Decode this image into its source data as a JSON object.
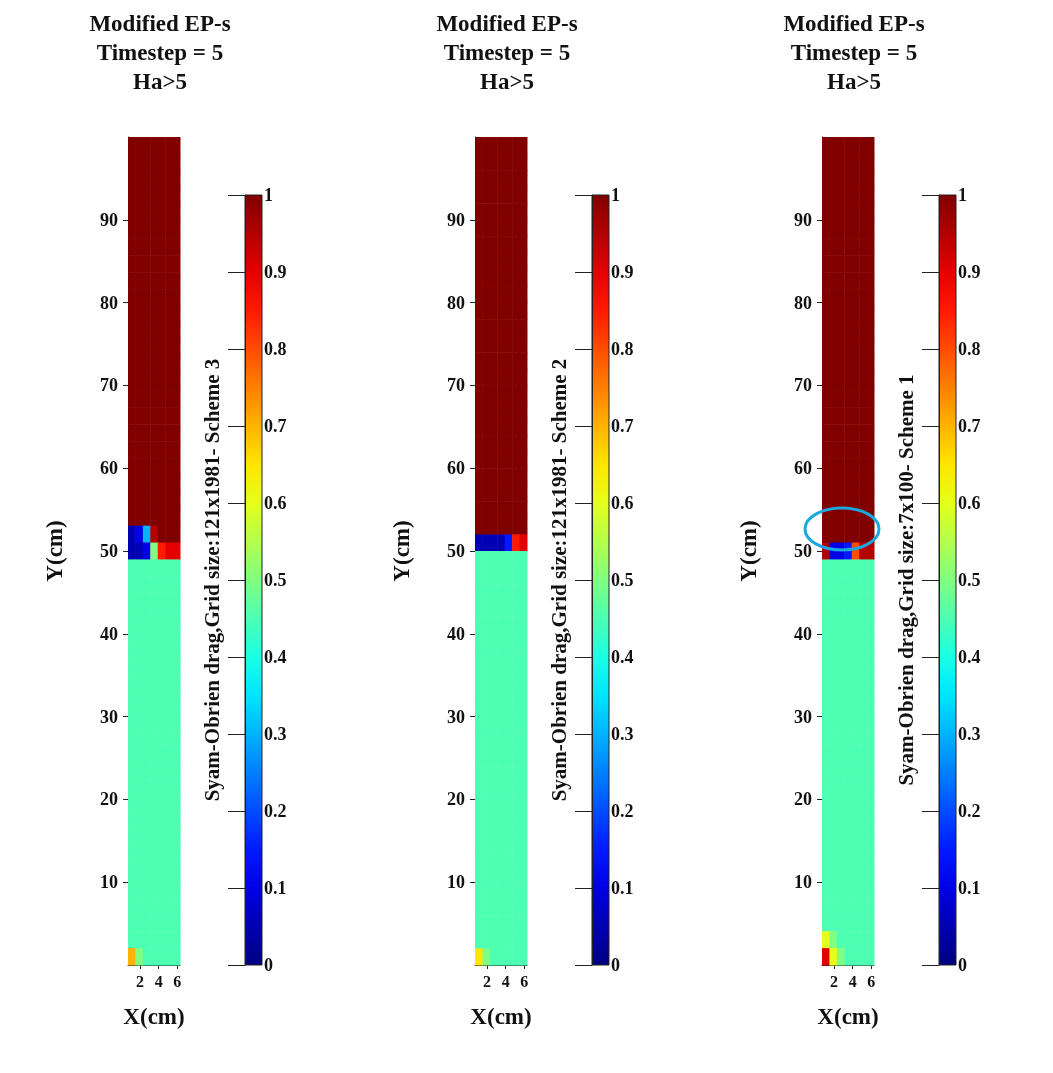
{
  "chart_data": [
    {
      "type": "heatmap",
      "title": "Modified EP-s\nTimestep = 5\nHa>5",
      "xlabel": "X(cm)",
      "ylabel": "Y(cm)",
      "clabel": "Syam-Obrien drag,Grid size:121x1981- Scheme 3",
      "xlim": [
        0.7,
        6.3
      ],
      "ylim": [
        0,
        100
      ],
      "xticks": [
        2,
        4,
        6
      ],
      "yticks": [
        10,
        20,
        30,
        40,
        50,
        60,
        70,
        80,
        90
      ],
      "clim": [
        0,
        1
      ],
      "cticks": [
        0,
        0.1,
        0.2,
        0.3,
        0.4,
        0.5,
        0.6,
        0.7,
        0.8,
        0.9,
        1
      ],
      "cells": [
        [
          1,
          1,
          1,
          1,
          1,
          1,
          1
        ],
        [
          1,
          1,
          1,
          1,
          1,
          1,
          1
        ],
        [
          1,
          1,
          1,
          1,
          1,
          1,
          1
        ],
        [
          1,
          1,
          1,
          1,
          1,
          1,
          1
        ],
        [
          1,
          1,
          1,
          1,
          1,
          1,
          1
        ],
        [
          1,
          1,
          1,
          1,
          1,
          1,
          1
        ],
        [
          1,
          1,
          1,
          1,
          1,
          1,
          1
        ],
        [
          1,
          1,
          1,
          1,
          1,
          1,
          1
        ],
        [
          1,
          1,
          1,
          1,
          1,
          1,
          1
        ],
        [
          1,
          1,
          1,
          1,
          1,
          1,
          1
        ],
        [
          1,
          1,
          1,
          1,
          1,
          1,
          1
        ],
        [
          1,
          1,
          1,
          1,
          1,
          1,
          1
        ],
        [
          1,
          1,
          1,
          1,
          1,
          1,
          1
        ],
        [
          1,
          1,
          1,
          1,
          1,
          1,
          1
        ],
        [
          1,
          1,
          1,
          1,
          1,
          1,
          1
        ],
        [
          1,
          1,
          1,
          1,
          1,
          1,
          1
        ],
        [
          1,
          1,
          1,
          1,
          1,
          1,
          1
        ],
        [
          1,
          1,
          1,
          1,
          1,
          1,
          1
        ],
        [
          1,
          1,
          1,
          1,
          1,
          1,
          1
        ],
        [
          1,
          1,
          1,
          1,
          1,
          1,
          1
        ],
        [
          1,
          1,
          1,
          1,
          1,
          1,
          1
        ],
        [
          1,
          1,
          1,
          1,
          1,
          1,
          1
        ],
        [
          1,
          1,
          1,
          1,
          1,
          1,
          1
        ],
        [
          0.05,
          0.1,
          0.3,
          0.95,
          1,
          1,
          1
        ],
        [
          0.05,
          0.05,
          0.1,
          0.5,
          0.85,
          0.9,
          0.9
        ],
        [
          0.45,
          0.45,
          0.45,
          0.45,
          0.45,
          0.45,
          0.45
        ],
        [
          0.45,
          0.45,
          0.45,
          0.45,
          0.45,
          0.45,
          0.45
        ],
        [
          0.45,
          0.45,
          0.45,
          0.45,
          0.45,
          0.45,
          0.45
        ],
        [
          0.45,
          0.45,
          0.45,
          0.45,
          0.45,
          0.45,
          0.45
        ],
        [
          0.45,
          0.45,
          0.45,
          0.45,
          0.45,
          0.45,
          0.45
        ],
        [
          0.45,
          0.45,
          0.45,
          0.45,
          0.45,
          0.45,
          0.45
        ],
        [
          0.45,
          0.45,
          0.45,
          0.45,
          0.45,
          0.45,
          0.45
        ],
        [
          0.45,
          0.45,
          0.45,
          0.45,
          0.45,
          0.45,
          0.45
        ],
        [
          0.45,
          0.45,
          0.45,
          0.45,
          0.45,
          0.45,
          0.45
        ],
        [
          0.45,
          0.45,
          0.45,
          0.45,
          0.45,
          0.45,
          0.45
        ],
        [
          0.45,
          0.45,
          0.45,
          0.45,
          0.45,
          0.45,
          0.45
        ],
        [
          0.45,
          0.45,
          0.45,
          0.45,
          0.45,
          0.45,
          0.45
        ],
        [
          0.45,
          0.45,
          0.45,
          0.45,
          0.45,
          0.45,
          0.45
        ],
        [
          0.45,
          0.45,
          0.45,
          0.45,
          0.45,
          0.45,
          0.45
        ],
        [
          0.45,
          0.45,
          0.45,
          0.45,
          0.45,
          0.45,
          0.45
        ],
        [
          0.45,
          0.45,
          0.45,
          0.45,
          0.45,
          0.45,
          0.45
        ],
        [
          0.45,
          0.45,
          0.45,
          0.45,
          0.45,
          0.45,
          0.45
        ],
        [
          0.45,
          0.45,
          0.45,
          0.45,
          0.45,
          0.45,
          0.45
        ],
        [
          0.45,
          0.45,
          0.45,
          0.45,
          0.45,
          0.45,
          0.45
        ],
        [
          0.45,
          0.45,
          0.45,
          0.45,
          0.45,
          0.45,
          0.45
        ],
        [
          0.45,
          0.45,
          0.45,
          0.45,
          0.45,
          0.45,
          0.45
        ],
        [
          0.45,
          0.45,
          0.45,
          0.45,
          0.45,
          0.45,
          0.45
        ],
        [
          0.45,
          0.45,
          0.45,
          0.45,
          0.45,
          0.45,
          0.45
        ],
        [
          0.7,
          0.5,
          0.45,
          0.45,
          0.45,
          0.45,
          0.45
        ]
      ]
    },
    {
      "type": "heatmap",
      "title": "Modified EP-s\nTimestep = 5\nHa>5",
      "xlabel": "X(cm)",
      "ylabel": "Y(cm)",
      "clabel": "Syam-Obrien drag,Grid size:121x1981- Scheme 2",
      "xlim": [
        0.7,
        6.3
      ],
      "ylim": [
        0,
        100
      ],
      "xticks": [
        2,
        4,
        6
      ],
      "yticks": [
        10,
        20,
        30,
        40,
        50,
        60,
        70,
        80,
        90
      ],
      "clim": [
        0,
        1
      ],
      "cticks": [
        0,
        0.1,
        0.2,
        0.3,
        0.4,
        0.5,
        0.6,
        0.7,
        0.8,
        0.9,
        1
      ],
      "cells": [
        [
          1,
          1,
          1,
          1,
          1,
          1,
          1
        ],
        [
          1,
          1,
          1,
          1,
          1,
          1,
          1
        ],
        [
          1,
          1,
          1,
          1,
          1,
          1,
          1
        ],
        [
          1,
          1,
          1,
          1,
          1,
          1,
          1
        ],
        [
          1,
          1,
          1,
          1,
          1,
          1,
          1
        ],
        [
          1,
          1,
          1,
          1,
          1,
          1,
          1
        ],
        [
          1,
          1,
          1,
          1,
          1,
          1,
          1
        ],
        [
          1,
          1,
          1,
          1,
          1,
          1,
          1
        ],
        [
          1,
          1,
          1,
          1,
          1,
          1,
          1
        ],
        [
          1,
          1,
          1,
          1,
          1,
          1,
          1
        ],
        [
          1,
          1,
          1,
          1,
          1,
          1,
          1
        ],
        [
          1,
          1,
          1,
          1,
          1,
          1,
          1
        ],
        [
          1,
          1,
          1,
          1,
          1,
          1,
          1
        ],
        [
          1,
          1,
          1,
          1,
          1,
          1,
          1
        ],
        [
          1,
          1,
          1,
          1,
          1,
          1,
          1
        ],
        [
          1,
          1,
          1,
          1,
          1,
          1,
          1
        ],
        [
          1,
          1,
          1,
          1,
          1,
          1,
          1
        ],
        [
          1,
          1,
          1,
          1,
          1,
          1,
          1
        ],
        [
          1,
          1,
          1,
          1,
          1,
          1,
          1
        ],
        [
          1,
          1,
          1,
          1,
          1,
          1,
          1
        ],
        [
          1,
          1,
          1,
          1,
          1,
          1,
          1
        ],
        [
          1,
          1,
          1,
          1,
          1,
          1,
          1
        ],
        [
          1,
          1,
          1,
          1,
          1,
          1,
          1
        ],
        [
          1,
          1,
          1,
          1,
          1,
          1,
          1
        ],
        [
          0.05,
          0.05,
          0.05,
          0.05,
          0.15,
          0.85,
          0.9
        ],
        [
          0.45,
          0.45,
          0.45,
          0.45,
          0.45,
          0.45,
          0.45
        ],
        [
          0.45,
          0.45,
          0.45,
          0.45,
          0.45,
          0.45,
          0.45
        ],
        [
          0.45,
          0.45,
          0.45,
          0.45,
          0.45,
          0.45,
          0.45
        ],
        [
          0.45,
          0.45,
          0.45,
          0.45,
          0.45,
          0.45,
          0.45
        ],
        [
          0.45,
          0.45,
          0.45,
          0.45,
          0.45,
          0.45,
          0.45
        ],
        [
          0.45,
          0.45,
          0.45,
          0.45,
          0.45,
          0.45,
          0.45
        ],
        [
          0.45,
          0.45,
          0.45,
          0.45,
          0.45,
          0.45,
          0.45
        ],
        [
          0.45,
          0.45,
          0.45,
          0.45,
          0.45,
          0.45,
          0.45
        ],
        [
          0.45,
          0.45,
          0.45,
          0.45,
          0.45,
          0.45,
          0.45
        ],
        [
          0.45,
          0.45,
          0.45,
          0.45,
          0.45,
          0.45,
          0.45
        ],
        [
          0.45,
          0.45,
          0.45,
          0.45,
          0.45,
          0.45,
          0.45
        ],
        [
          0.45,
          0.45,
          0.45,
          0.45,
          0.45,
          0.45,
          0.45
        ],
        [
          0.45,
          0.45,
          0.45,
          0.45,
          0.45,
          0.45,
          0.45
        ],
        [
          0.45,
          0.45,
          0.45,
          0.45,
          0.45,
          0.45,
          0.45
        ],
        [
          0.45,
          0.45,
          0.45,
          0.45,
          0.45,
          0.45,
          0.45
        ],
        [
          0.45,
          0.45,
          0.45,
          0.45,
          0.45,
          0.45,
          0.45
        ],
        [
          0.45,
          0.45,
          0.45,
          0.45,
          0.45,
          0.45,
          0.45
        ],
        [
          0.45,
          0.45,
          0.45,
          0.45,
          0.45,
          0.45,
          0.45
        ],
        [
          0.45,
          0.45,
          0.45,
          0.45,
          0.45,
          0.45,
          0.45
        ],
        [
          0.45,
          0.45,
          0.45,
          0.45,
          0.45,
          0.45,
          0.45
        ],
        [
          0.45,
          0.45,
          0.45,
          0.45,
          0.45,
          0.45,
          0.45
        ],
        [
          0.45,
          0.45,
          0.45,
          0.45,
          0.45,
          0.45,
          0.45
        ],
        [
          0.45,
          0.45,
          0.45,
          0.45,
          0.45,
          0.45,
          0.45
        ],
        [
          0.45,
          0.45,
          0.45,
          0.45,
          0.45,
          0.45,
          0.45
        ],
        [
          0.65,
          0.5,
          0.45,
          0.45,
          0.45,
          0.45,
          0.45
        ]
      ]
    },
    {
      "type": "heatmap",
      "title": "Modified EP-s\nTimestep = 5\nHa>5",
      "xlabel": "X(cm)",
      "ylabel": "Y(cm)",
      "clabel": "Syam-Obrien drag,Grid size:7x100- Scheme 1",
      "xlim": [
        0.7,
        6.3
      ],
      "ylim": [
        0,
        100
      ],
      "xticks": [
        2,
        4,
        6
      ],
      "yticks": [
        10,
        20,
        30,
        40,
        50,
        60,
        70,
        80,
        90
      ],
      "clim": [
        0,
        1
      ],
      "cticks": [
        0,
        0.1,
        0.2,
        0.3,
        0.4,
        0.5,
        0.6,
        0.7,
        0.8,
        0.9,
        1
      ],
      "cells": [
        [
          1,
          1,
          1,
          1,
          1,
          1,
          1
        ],
        [
          1,
          1,
          1,
          1,
          1,
          1,
          1
        ],
        [
          1,
          1,
          1,
          1,
          1,
          1,
          1
        ],
        [
          1,
          1,
          1,
          1,
          1,
          1,
          1
        ],
        [
          1,
          1,
          1,
          1,
          1,
          1,
          1
        ],
        [
          1,
          1,
          1,
          1,
          1,
          1,
          1
        ],
        [
          1,
          1,
          1,
          1,
          1,
          1,
          1
        ],
        [
          1,
          1,
          1,
          1,
          1,
          1,
          1
        ],
        [
          1,
          1,
          1,
          1,
          1,
          1,
          1
        ],
        [
          1,
          1,
          1,
          1,
          1,
          1,
          1
        ],
        [
          1,
          1,
          1,
          1,
          1,
          1,
          1
        ],
        [
          1,
          1,
          1,
          1,
          1,
          1,
          1
        ],
        [
          1,
          1,
          1,
          1,
          1,
          1,
          1
        ],
        [
          1,
          1,
          1,
          1,
          1,
          1,
          1
        ],
        [
          1,
          1,
          1,
          1,
          1,
          1,
          1
        ],
        [
          1,
          1,
          1,
          1,
          1,
          1,
          1
        ],
        [
          1,
          1,
          1,
          1,
          1,
          1,
          1
        ],
        [
          1,
          1,
          1,
          1,
          1,
          1,
          1
        ],
        [
          1,
          1,
          1,
          1,
          1,
          1,
          1
        ],
        [
          1,
          1,
          1,
          1,
          1,
          1,
          1
        ],
        [
          1,
          1,
          1,
          1,
          1,
          1,
          1
        ],
        [
          1,
          1,
          1,
          1,
          1,
          1,
          1
        ],
        [
          1,
          1,
          1,
          1,
          1,
          1,
          1
        ],
        [
          1,
          1,
          1,
          1,
          1,
          1,
          1
        ],
        [
          0.95,
          0.1,
          0.1,
          0.15,
          0.8,
          0.95,
          0.95
        ],
        [
          0.45,
          0.45,
          0.45,
          0.45,
          0.45,
          0.45,
          0.45
        ],
        [
          0.45,
          0.45,
          0.45,
          0.45,
          0.45,
          0.45,
          0.45
        ],
        [
          0.45,
          0.45,
          0.45,
          0.45,
          0.45,
          0.45,
          0.45
        ],
        [
          0.45,
          0.45,
          0.45,
          0.45,
          0.45,
          0.45,
          0.45
        ],
        [
          0.45,
          0.45,
          0.45,
          0.45,
          0.45,
          0.45,
          0.45
        ],
        [
          0.45,
          0.45,
          0.45,
          0.45,
          0.45,
          0.45,
          0.45
        ],
        [
          0.45,
          0.45,
          0.45,
          0.45,
          0.45,
          0.45,
          0.45
        ],
        [
          0.45,
          0.45,
          0.45,
          0.45,
          0.45,
          0.45,
          0.45
        ],
        [
          0.45,
          0.45,
          0.45,
          0.45,
          0.45,
          0.45,
          0.45
        ],
        [
          0.45,
          0.45,
          0.45,
          0.45,
          0.45,
          0.45,
          0.45
        ],
        [
          0.45,
          0.45,
          0.45,
          0.45,
          0.45,
          0.45,
          0.45
        ],
        [
          0.45,
          0.45,
          0.45,
          0.45,
          0.45,
          0.45,
          0.45
        ],
        [
          0.45,
          0.45,
          0.45,
          0.45,
          0.45,
          0.45,
          0.45
        ],
        [
          0.45,
          0.45,
          0.45,
          0.45,
          0.45,
          0.45,
          0.45
        ],
        [
          0.45,
          0.45,
          0.45,
          0.45,
          0.45,
          0.45,
          0.45
        ],
        [
          0.45,
          0.45,
          0.45,
          0.45,
          0.45,
          0.45,
          0.45
        ],
        [
          0.45,
          0.45,
          0.45,
          0.45,
          0.45,
          0.45,
          0.45
        ],
        [
          0.45,
          0.45,
          0.45,
          0.45,
          0.45,
          0.45,
          0.45
        ],
        [
          0.45,
          0.45,
          0.45,
          0.45,
          0.45,
          0.45,
          0.45
        ],
        [
          0.45,
          0.45,
          0.45,
          0.45,
          0.45,
          0.45,
          0.45
        ],
        [
          0.45,
          0.45,
          0.45,
          0.45,
          0.45,
          0.45,
          0.45
        ],
        [
          0.45,
          0.45,
          0.45,
          0.45,
          0.45,
          0.45,
          0.45
        ],
        [
          0.6,
          0.5,
          0.45,
          0.45,
          0.45,
          0.45,
          0.45
        ],
        [
          0.9,
          0.6,
          0.5,
          0.45,
          0.45,
          0.45,
          0.45
        ]
      ]
    }
  ]
}
